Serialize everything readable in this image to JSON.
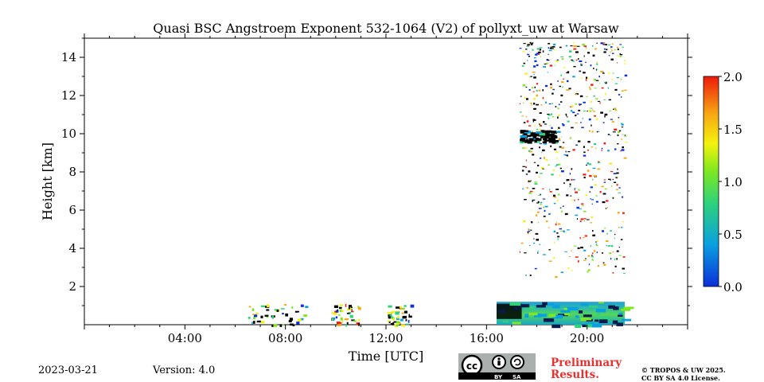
{
  "chart_data": {
    "type": "heatmap",
    "title": "Quasi BSC Angstroem Exponent 532-1064 (V2) of pollyxt_uw at Warsaw",
    "xlabel": "Time [UTC]",
    "ylabel": "Height [km]",
    "x_range_hours": [
      0,
      24
    ],
    "y_range_km": [
      0,
      15
    ],
    "x_ticks": [
      {
        "hour": 4,
        "label": "04:00"
      },
      {
        "hour": 8,
        "label": "08:00"
      },
      {
        "hour": 12,
        "label": "12:00"
      },
      {
        "hour": 16,
        "label": "16:00"
      },
      {
        "hour": 20,
        "label": "20:00"
      }
    ],
    "y_ticks": [
      {
        "value": 2,
        "label": "2"
      },
      {
        "value": 4,
        "label": "4"
      },
      {
        "value": 6,
        "label": "6"
      },
      {
        "value": 8,
        "label": "8"
      },
      {
        "value": 10,
        "label": "10"
      },
      {
        "value": 12,
        "label": "12"
      },
      {
        "value": 14,
        "label": "14"
      }
    ],
    "colorbar": {
      "range": [
        0.0,
        2.0
      ],
      "ticks": [
        "0.0",
        "0.5",
        "1.0",
        "1.5",
        "2.0"
      ],
      "colormap": [
        "#0b2fd9",
        "#0aa0e0",
        "#2fd37a",
        "#7ee81f",
        "#f4f20d",
        "#f7a813",
        "#ef1a0a"
      ]
    },
    "data_regions": [
      {
        "t_start": 6.5,
        "t_end": 8.8,
        "h_bottom": 0.0,
        "h_top": 1.1,
        "description": "scattered low-level values"
      },
      {
        "t_start": 9.8,
        "t_end": 11.0,
        "h_bottom": 0.0,
        "h_top": 1.1,
        "description": "scattered low-level values"
      },
      {
        "t_start": 12.0,
        "t_end": 13.0,
        "h_bottom": 0.0,
        "h_top": 1.1,
        "description": "scattered low-level values"
      },
      {
        "t_start": 16.4,
        "t_end": 21.5,
        "h_bottom": 0.0,
        "h_top": 1.2,
        "description": "boundary layer, values mostly 0.3-1.1"
      },
      {
        "t_start": 17.3,
        "t_end": 21.5,
        "h_bottom": 2.5,
        "h_top": 15.0,
        "description": "sparse noisy values"
      },
      {
        "t_start": 17.3,
        "t_end": 18.7,
        "h_bottom": 9.6,
        "h_top": 10.2,
        "description": "cloud layer, values near 0"
      }
    ]
  },
  "footer": {
    "date": "2023-03-21",
    "version": "Version: 4.0",
    "preliminary": [
      "Preliminary",
      "Results."
    ],
    "license": [
      "© TROPOS & UW 2025.",
      "CC BY SA 4.0 License."
    ],
    "cc_labels": [
      "BY",
      "SA"
    ]
  }
}
